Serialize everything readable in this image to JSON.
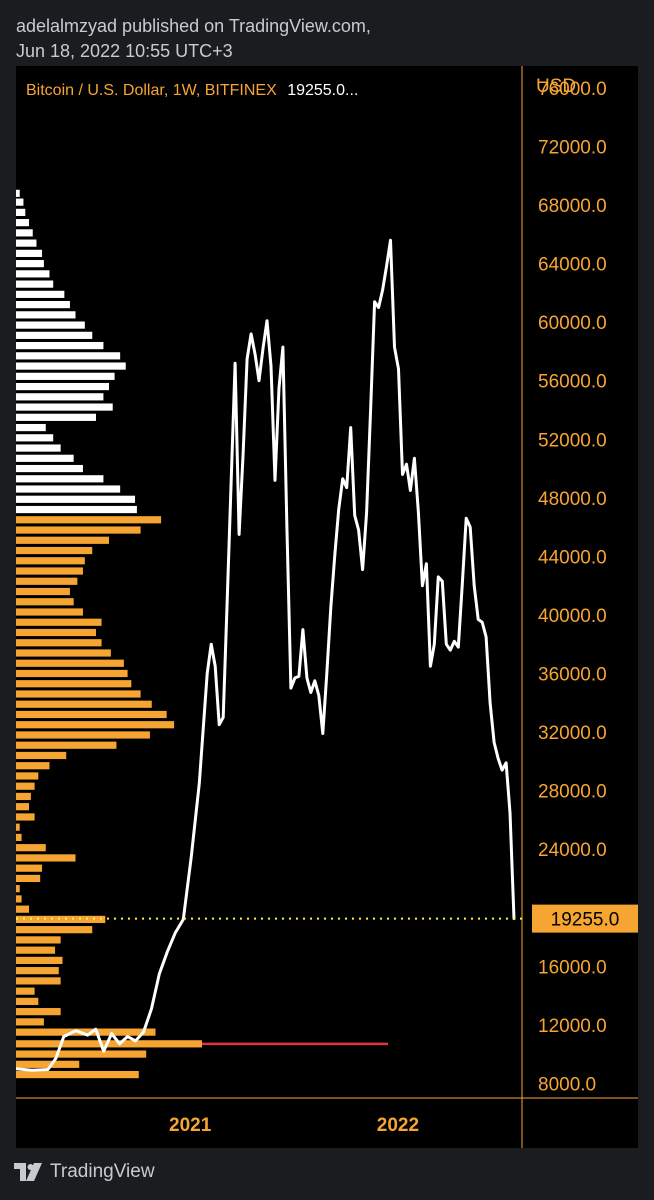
{
  "header": {
    "line1": "adelalmzyad published on TradingView.com,",
    "line2": "Jun 18, 2022 10:55 UTC+3"
  },
  "legend": {
    "symbol": "Bitcoin / U.S. Dollar, 1W, BITFINEX",
    "price": "19255.0..."
  },
  "footer": {
    "brand": "TradingView",
    "logo_icon": "tradingview-logo-icon"
  },
  "colors": {
    "background": "#000000",
    "accent": "#f7a532",
    "price_line": "#ffffff",
    "current_price_line": "#fff34a",
    "poc_line": "#e0333b",
    "profile_up": "#ffffff",
    "profile_down": "#f7a532"
  },
  "chart_data": {
    "type": "line",
    "currency": "USD",
    "current_price": 19255.0,
    "current_price_label": "19255.0",
    "ylim": [
      7000,
      77500
    ],
    "y_ticks": [
      "76000.0",
      "72000.0",
      "68000.0",
      "64000.0",
      "60000.0",
      "56000.0",
      "52000.0",
      "48000.0",
      "44000.0",
      "40000.0",
      "36000.0",
      "32000.0",
      "28000.0",
      "24000.0",
      "16000.0",
      "12000.0",
      "8000.0"
    ],
    "x_ticks": [
      {
        "label": "2021",
        "date": "2021-01-01"
      },
      {
        "label": "2022",
        "date": "2022-01-01"
      }
    ],
    "xlim": [
      "2020-03-01",
      "2022-08-07"
    ],
    "series": [
      {
        "points": [
          [
            "2020-03-01",
            9000
          ],
          [
            "2020-03-29",
            8900
          ],
          [
            "2020-04-26",
            8950
          ],
          [
            "2020-05-10",
            9700
          ],
          [
            "2020-05-24",
            11200
          ],
          [
            "2020-06-14",
            11600
          ],
          [
            "2020-07-05",
            11300
          ],
          [
            "2020-07-19",
            11700
          ],
          [
            "2020-08-02",
            10200
          ],
          [
            "2020-08-16",
            11400
          ],
          [
            "2020-08-30",
            10700
          ],
          [
            "2020-09-13",
            11200
          ],
          [
            "2020-09-27",
            10900
          ],
          [
            "2020-10-11",
            11500
          ],
          [
            "2020-10-25",
            13100
          ],
          [
            "2020-11-08",
            15500
          ],
          [
            "2020-11-22",
            17000
          ],
          [
            "2020-12-06",
            18300
          ],
          [
            "2020-12-20",
            19200
          ],
          [
            "2021-01-03",
            23500
          ],
          [
            "2021-01-17",
            28500
          ],
          [
            "2021-01-31",
            36000
          ],
          [
            "2021-02-07",
            38000
          ],
          [
            "2021-02-14",
            36500
          ],
          [
            "2021-02-21",
            32500
          ],
          [
            "2021-02-28",
            33000
          ],
          [
            "2021-03-07",
            41000
          ],
          [
            "2021-03-14",
            49000
          ],
          [
            "2021-03-21",
            57200
          ],
          [
            "2021-03-28",
            45500
          ],
          [
            "2021-04-04",
            51000
          ],
          [
            "2021-04-11",
            57500
          ],
          [
            "2021-04-18",
            59200
          ],
          [
            "2021-04-25",
            57800
          ],
          [
            "2021-05-02",
            56000
          ],
          [
            "2021-05-09",
            58200
          ],
          [
            "2021-05-16",
            60100
          ],
          [
            "2021-05-23",
            57000
          ],
          [
            "2021-05-30",
            49200
          ],
          [
            "2021-06-06",
            55500
          ],
          [
            "2021-06-13",
            58300
          ],
          [
            "2021-06-20",
            46000
          ],
          [
            "2021-06-27",
            35000
          ],
          [
            "2021-07-04",
            35700
          ],
          [
            "2021-07-11",
            35800
          ],
          [
            "2021-07-18",
            39000
          ],
          [
            "2021-07-25",
            35700
          ],
          [
            "2021-08-01",
            34700
          ],
          [
            "2021-08-08",
            35500
          ],
          [
            "2021-08-15",
            34500
          ],
          [
            "2021-08-22",
            31900
          ],
          [
            "2021-08-29",
            36000
          ],
          [
            "2021-09-05",
            40500
          ],
          [
            "2021-09-12",
            44000
          ],
          [
            "2021-09-19",
            47200
          ],
          [
            "2021-09-26",
            49300
          ],
          [
            "2021-10-03",
            48700
          ],
          [
            "2021-10-10",
            52800
          ],
          [
            "2021-10-17",
            46800
          ],
          [
            "2021-10-24",
            45800
          ],
          [
            "2021-10-31",
            43100
          ],
          [
            "2021-11-07",
            47000
          ],
          [
            "2021-11-14",
            54000
          ],
          [
            "2021-11-21",
            61400
          ],
          [
            "2021-11-28",
            61000
          ],
          [
            "2021-12-05",
            62200
          ],
          [
            "2021-12-12",
            63800
          ],
          [
            "2021-12-19",
            65600
          ],
          [
            "2021-12-26",
            58300
          ],
          [
            "2022-01-02",
            56800
          ],
          [
            "2022-01-09",
            49600
          ],
          [
            "2022-01-16",
            50300
          ],
          [
            "2022-01-23",
            48500
          ],
          [
            "2022-01-30",
            50700
          ],
          [
            "2022-02-06",
            47000
          ],
          [
            "2022-02-13",
            42000
          ],
          [
            "2022-02-20",
            43500
          ],
          [
            "2022-02-27",
            36500
          ],
          [
            "2022-03-06",
            38000
          ],
          [
            "2022-03-13",
            42600
          ],
          [
            "2022-03-20",
            42300
          ],
          [
            "2022-03-27",
            38000
          ],
          [
            "2022-04-03",
            37600
          ],
          [
            "2022-04-10",
            38200
          ],
          [
            "2022-04-17",
            37800
          ],
          [
            "2022-04-24",
            42000
          ],
          [
            "2022-05-01",
            46600
          ],
          [
            "2022-05-08",
            46000
          ],
          [
            "2022-05-15",
            42000
          ],
          [
            "2022-05-22",
            39700
          ],
          [
            "2022-05-29",
            39500
          ],
          [
            "2022-06-05",
            38500
          ],
          [
            "2022-06-12",
            34000
          ],
          [
            "2022-06-19",
            31300
          ],
          [
            "2022-06-26",
            30200
          ],
          [
            "2022-07-03",
            29400
          ],
          [
            "2022-07-10",
            29900
          ],
          [
            "2022-07-17",
            26500
          ],
          [
            "2022-07-24",
            19255
          ]
        ]
      }
    ],
    "volume_profile": {
      "poc_price": 10700,
      "levels_up": [
        [
          68800,
          0.02
        ],
        [
          68200,
          0.04
        ],
        [
          67500,
          0.05
        ],
        [
          66800,
          0.07
        ],
        [
          66100,
          0.09
        ],
        [
          65400,
          0.11
        ],
        [
          64700,
          0.14
        ],
        [
          64000,
          0.15
        ],
        [
          63300,
          0.18
        ],
        [
          62600,
          0.2
        ],
        [
          61900,
          0.26
        ],
        [
          61200,
          0.29
        ],
        [
          60500,
          0.32
        ],
        [
          59800,
          0.37
        ],
        [
          59100,
          0.41
        ],
        [
          58400,
          0.47
        ],
        [
          57700,
          0.56
        ],
        [
          57000,
          0.59
        ],
        [
          56300,
          0.53
        ],
        [
          55600,
          0.5
        ],
        [
          54900,
          0.47
        ],
        [
          54200,
          0.52
        ],
        [
          53500,
          0.43
        ],
        [
          52800,
          0.16
        ],
        [
          52100,
          0.2
        ],
        [
          51400,
          0.24
        ],
        [
          50700,
          0.31
        ],
        [
          50000,
          0.36
        ],
        [
          49300,
          0.47
        ],
        [
          48600,
          0.56
        ],
        [
          47900,
          0.64
        ],
        [
          47200,
          0.65
        ]
      ],
      "levels_down": [
        [
          46500,
          0.78
        ],
        [
          45800,
          0.67
        ],
        [
          45100,
          0.5
        ],
        [
          44400,
          0.41
        ],
        [
          43700,
          0.37
        ],
        [
          43000,
          0.36
        ],
        [
          42300,
          0.33
        ],
        [
          41600,
          0.29
        ],
        [
          40900,
          0.31
        ],
        [
          40200,
          0.36
        ],
        [
          39500,
          0.46
        ],
        [
          38800,
          0.43
        ],
        [
          38100,
          0.46
        ],
        [
          37400,
          0.51
        ],
        [
          36700,
          0.58
        ],
        [
          36000,
          0.6
        ],
        [
          35300,
          0.62
        ],
        [
          34600,
          0.67
        ],
        [
          33900,
          0.73
        ],
        [
          33200,
          0.81
        ],
        [
          32500,
          0.85
        ],
        [
          31800,
          0.72
        ],
        [
          31100,
          0.54
        ],
        [
          30400,
          0.27
        ],
        [
          29700,
          0.18
        ],
        [
          29000,
          0.12
        ],
        [
          28300,
          0.1
        ],
        [
          27600,
          0.08
        ],
        [
          26900,
          0.07
        ],
        [
          26200,
          0.1
        ],
        [
          25500,
          0.02
        ],
        [
          24800,
          0.03
        ],
        [
          24100,
          0.16
        ],
        [
          23400,
          0.32
        ],
        [
          22700,
          0.14
        ],
        [
          22000,
          0.13
        ],
        [
          21300,
          0.02
        ],
        [
          20600,
          0.03
        ],
        [
          19900,
          0.07
        ],
        [
          19200,
          0.48
        ],
        [
          18500,
          0.41
        ],
        [
          17800,
          0.24
        ],
        [
          17100,
          0.21
        ],
        [
          16400,
          0.25
        ],
        [
          15700,
          0.23
        ],
        [
          15000,
          0.24
        ],
        [
          14300,
          0.1
        ],
        [
          13600,
          0.12
        ],
        [
          12900,
          0.24
        ],
        [
          12200,
          0.15
        ],
        [
          11500,
          0.75
        ],
        [
          10700,
          1.0
        ],
        [
          10000,
          0.7
        ],
        [
          9300,
          0.34
        ],
        [
          8600,
          0.66
        ]
      ]
    }
  }
}
